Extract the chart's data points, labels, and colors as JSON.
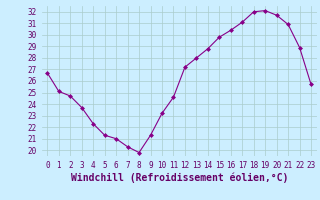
{
  "x": [
    0,
    1,
    2,
    3,
    4,
    5,
    6,
    7,
    8,
    9,
    10,
    11,
    12,
    13,
    14,
    15,
    16,
    17,
    18,
    19,
    20,
    21,
    22,
    23
  ],
  "y": [
    26.7,
    25.1,
    24.7,
    23.7,
    22.3,
    21.3,
    21.0,
    20.3,
    19.8,
    21.3,
    23.2,
    24.6,
    27.2,
    28.0,
    28.8,
    29.8,
    30.4,
    31.1,
    32.0,
    32.1,
    31.7,
    30.9,
    28.9,
    25.7
  ],
  "line_color": "#880088",
  "marker": "D",
  "marker_size": 2,
  "xlabel": "Windchill (Refroidissement éolien,°C)",
  "xlabel_fontsize": 7,
  "ylabel_ticks": [
    20,
    21,
    22,
    23,
    24,
    25,
    26,
    27,
    28,
    29,
    30,
    31,
    32
  ],
  "xlim": [
    -0.5,
    23.5
  ],
  "ylim": [
    19.5,
    32.5
  ],
  "bg_color": "#cceeff",
  "grid_color": "#aacccc",
  "tick_fontsize": 5.5
}
